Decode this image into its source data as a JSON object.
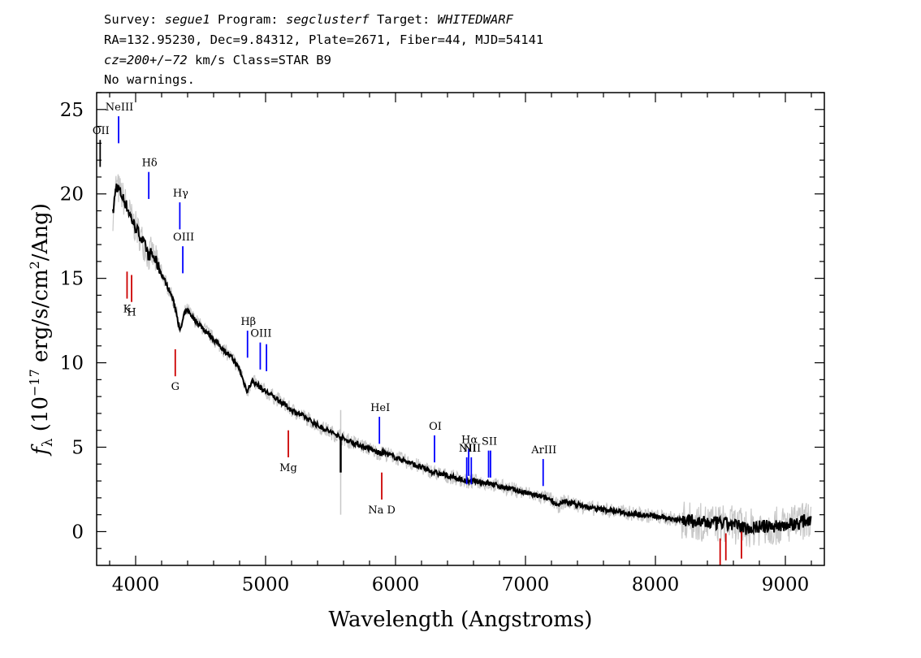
{
  "header": {
    "line1": {
      "survey_label": "Survey: ",
      "survey": "segue1",
      "program_label": " Program: ",
      "program": "segclusterf",
      "target_label": " Target: ",
      "target": "WHITEDWARF"
    },
    "line2": "RA=132.95230, Dec=9.84312, Plate=2671, Fiber=44, MJD=54141",
    "line3": {
      "cz": "cz=200+/−72",
      "rest": " km/s Class=STAR B9"
    },
    "line4": "No warnings."
  },
  "chart_data": {
    "type": "line",
    "xlabel": "Wavelength (Angstroms)",
    "ylabel": {
      "prefix": "f",
      "sub": "λ",
      "open": " (10",
      "exp": "−17",
      "mid": " erg/s/cm",
      "exp2": "2",
      "close": "/Ang)"
    },
    "xlim": [
      3700,
      9300
    ],
    "ylim": [
      -2,
      26
    ],
    "xticks": [
      {
        "value": 4000,
        "label": "4000"
      },
      {
        "value": 5000,
        "label": "5000"
      },
      {
        "value": 6000,
        "label": "6000"
      },
      {
        "value": 7000,
        "label": "7000"
      },
      {
        "value": 8000,
        "label": "8000"
      },
      {
        "value": 9000,
        "label": "9000"
      }
    ],
    "yticks": [
      {
        "value": 0,
        "label": "0"
      },
      {
        "value": 5,
        "label": "5"
      },
      {
        "value": 10,
        "label": "10"
      },
      {
        "value": 15,
        "label": "15"
      },
      {
        "value": 20,
        "label": "20"
      },
      {
        "value": 25,
        "label": "25"
      }
    ],
    "series": [
      {
        "style": "flux",
        "color": "#000000",
        "x": [
          3825,
          3850,
          3875,
          3900,
          3925,
          3950,
          3975,
          4000,
          4030,
          4060,
          4080,
          4101,
          4120,
          4150,
          4180,
          4210,
          4240,
          4270,
          4300,
          4320,
          4340,
          4360,
          4380,
          4400,
          4430,
          4460,
          4500,
          4550,
          4600,
          4650,
          4700,
          4750,
          4800,
          4830,
          4850,
          4861,
          4875,
          4900,
          4950,
          5000,
          5100,
          5200,
          5300,
          5400,
          5500,
          5580,
          5600,
          5700,
          5800,
          5890,
          5900,
          6000,
          6100,
          6200,
          6300,
          6400,
          6500,
          6563,
          6600,
          6700,
          6800,
          6900,
          7000,
          7100,
          7200,
          7250,
          7300,
          7400,
          7500,
          7600,
          7700,
          7800,
          7900,
          8000,
          8100,
          8200,
          8300,
          8400,
          8500,
          8600,
          8700,
          8800,
          8900,
          9000,
          9100,
          9200
        ],
        "y": [
          18.8,
          20.5,
          20.2,
          19.8,
          19.4,
          18.9,
          18.4,
          18.0,
          17.6,
          17.1,
          16.8,
          16.3,
          16.5,
          16.1,
          15.6,
          15.1,
          14.6,
          14.1,
          13.4,
          12.8,
          11.8,
          12.4,
          13.0,
          13.1,
          12.8,
          12.5,
          12.2,
          11.8,
          11.4,
          11.0,
          10.6,
          10.2,
          9.6,
          8.9,
          8.5,
          8.3,
          8.6,
          8.9,
          8.6,
          8.3,
          7.8,
          7.2,
          6.8,
          6.3,
          5.9,
          5.6,
          5.5,
          5.2,
          4.9,
          4.6,
          4.7,
          4.4,
          4.1,
          3.8,
          3.5,
          3.3,
          3.1,
          2.9,
          3.0,
          2.9,
          2.7,
          2.5,
          2.3,
          2.1,
          1.9,
          1.5,
          1.8,
          1.6,
          1.4,
          1.3,
          1.2,
          1.1,
          1.0,
          0.9,
          0.8,
          0.7,
          0.6,
          0.5,
          0.5,
          0.4,
          0.2,
          0.3,
          0.3,
          0.4,
          0.5,
          0.8
        ]
      }
    ],
    "emission_lines": [
      {
        "label": "OII",
        "wave": 3727,
        "y0": 21.6,
        "y1": 23.2,
        "color": "#000000"
      },
      {
        "label": "NeIII",
        "wave": 3869,
        "y0": 23.0,
        "y1": 24.6,
        "color": "#0000ff"
      },
      {
        "label": "Hδ",
        "wave": 4101,
        "y0": 19.7,
        "y1": 21.3,
        "color": "#0000ff"
      },
      {
        "label": "Hγ",
        "wave": 4340,
        "y0": 17.9,
        "y1": 19.5,
        "color": "#0000ff"
      },
      {
        "label": "OIII",
        "wave": 4363,
        "y0": 15.3,
        "y1": 16.9,
        "color": "#0000ff"
      },
      {
        "label": "Hβ",
        "wave": 4861,
        "y0": 10.3,
        "y1": 11.9,
        "color": "#0000ff"
      },
      {
        "label": "OIII",
        "wave": 4959,
        "y0": 9.6,
        "y1": 11.2,
        "color": "#0000ff"
      },
      {
        "label": "",
        "wave": 5007,
        "y0": 9.5,
        "y1": 11.1,
        "color": "#0000ff"
      },
      {
        "label": "HeI",
        "wave": 5876,
        "y0": 5.2,
        "y1": 6.8,
        "color": "#0000ff"
      },
      {
        "label": "OI",
        "wave": 6300,
        "y0": 4.1,
        "y1": 5.7,
        "color": "#0000ff"
      },
      {
        "label": "NII",
        "wave": 6548,
        "y0": 2.8,
        "y1": 4.4,
        "color": "#0000ff"
      },
      {
        "label": "Hα",
        "wave": 6563,
        "y0": 3.3,
        "y1": 4.9,
        "color": "#0000ff"
      },
      {
        "label": "NII",
        "wave": 6583,
        "y0": 2.8,
        "y1": 4.4,
        "color": "#0000ff"
      },
      {
        "label": "SII",
        "wave": 6716,
        "y0": 3.2,
        "y1": 4.8,
        "color": "#0000ff"
      },
      {
        "label": "",
        "wave": 6731,
        "y0": 3.2,
        "y1": 4.8,
        "color": "#0000ff"
      },
      {
        "label": "ArIII",
        "wave": 7136,
        "y0": 2.7,
        "y1": 4.3,
        "color": "#0000ff"
      }
    ],
    "absorption_lines": [
      {
        "label": "K",
        "wave": 3934,
        "y0": 13.8,
        "y1": 15.4,
        "color": "#cc0000"
      },
      {
        "label": "H",
        "wave": 3969,
        "y0": 13.6,
        "y1": 15.2,
        "color": "#cc0000"
      },
      {
        "label": "G",
        "wave": 4305,
        "y0": 9.2,
        "y1": 10.8,
        "color": "#cc0000"
      },
      {
        "label": "Mg",
        "wave": 5175,
        "y0": 4.4,
        "y1": 6.0,
        "color": "#cc0000"
      },
      {
        "label": "Na D",
        "wave": 5894,
        "y0": 1.9,
        "y1": 3.5,
        "color": "#cc0000"
      },
      {
        "label": "",
        "wave": 8498,
        "y0": -2.0,
        "y1": -0.4,
        "color": "#cc0000"
      },
      {
        "label": "",
        "wave": 8542,
        "y0": -1.7,
        "y1": -0.1,
        "color": "#cc0000"
      },
      {
        "label": "",
        "wave": 8662,
        "y0": -1.6,
        "y1": 0.0,
        "color": "#cc0000"
      }
    ],
    "noise_color": "#c8c8c8",
    "sky_spikes": [
      {
        "wave": 5578,
        "y0": 1.0,
        "y1": 7.2
      }
    ]
  }
}
